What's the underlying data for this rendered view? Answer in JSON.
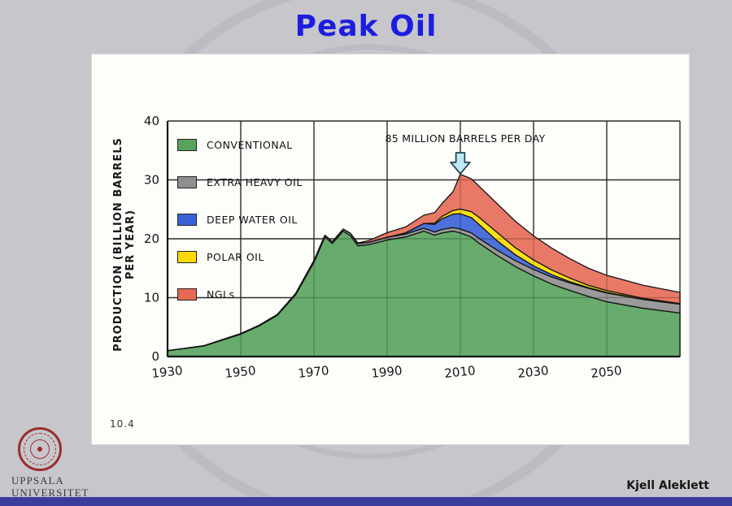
{
  "slide": {
    "title": "Peak Oil",
    "author": "Kjell Aleklett",
    "figure_number": "10.4",
    "logo_line1": "UPPSALA",
    "logo_line2": "UNIVERSITET",
    "colors": {
      "title_blue": "#1d1de0",
      "footer_bar": "#3c3c9c",
      "logo_red": "#9c2b2b",
      "arrow_fill": "#bfe9f5"
    }
  },
  "chart_data": {
    "type": "area",
    "stacked": true,
    "ylabel": "PRODUCTION (BILLION BARRELS PER YEAR)",
    "annotation": "85 MILLION BARRELS PER DAY",
    "annotation_year": 2010,
    "grid": true,
    "legend_position": "upper-left-inside",
    "xlim": [
      1930,
      2070
    ],
    "ylim": [
      0,
      40
    ],
    "xticks": [
      1930,
      1950,
      1970,
      1990,
      2010,
      2030,
      2050
    ],
    "yticks": [
      0,
      10,
      20,
      30,
      40
    ],
    "x": [
      1930,
      1940,
      1950,
      1955,
      1960,
      1965,
      1970,
      1973,
      1975,
      1978,
      1980,
      1982,
      1985,
      1990,
      1995,
      2000,
      2003,
      2005,
      2008,
      2010,
      2013,
      2015,
      2020,
      2025,
      2030,
      2035,
      2040,
      2045,
      2050,
      2060,
      2070
    ],
    "series": [
      {
        "label": "CONVENTIONAL",
        "color": "#57a35c",
        "values": [
          1.0,
          1.8,
          3.8,
          5.2,
          7.0,
          10.5,
          16.0,
          20.3,
          19.2,
          21.3,
          20.5,
          18.8,
          19.0,
          19.8,
          20.3,
          21.3,
          20.6,
          21.0,
          21.3,
          21.0,
          20.3,
          19.3,
          17.2,
          15.3,
          13.7,
          12.3,
          11.2,
          10.2,
          9.3,
          8.2,
          7.4
        ]
      },
      {
        "label": "EXTRA HEAVY OIL",
        "color": "#8f8f8f",
        "values": [
          0,
          0.05,
          0.1,
          0.1,
          0.15,
          0.2,
          0.3,
          0.3,
          0.3,
          0.35,
          0.4,
          0.4,
          0.4,
          0.45,
          0.5,
          0.5,
          0.55,
          0.6,
          0.6,
          0.65,
          0.7,
          0.8,
          0.9,
          1.0,
          1.1,
          1.2,
          1.3,
          1.4,
          1.5,
          1.5,
          1.5
        ]
      },
      {
        "label": "DEEP WATER OIL",
        "color": "#3a62d8",
        "values": [
          0,
          0,
          0,
          0,
          0,
          0,
          0,
          0,
          0,
          0,
          0,
          0,
          0,
          0,
          0.2,
          0.8,
          1.3,
          1.8,
          2.3,
          2.6,
          2.6,
          2.4,
          1.6,
          1.0,
          0.6,
          0.4,
          0.2,
          0.1,
          0.1,
          0,
          0
        ]
      },
      {
        "label": "POLAR OIL",
        "color": "#ffd900",
        "values": [
          0,
          0,
          0,
          0,
          0,
          0,
          0,
          0,
          0,
          0,
          0,
          0,
          0,
          0,
          0,
          0,
          0.2,
          0.4,
          0.6,
          0.8,
          1.0,
          1.2,
          1.4,
          1.2,
          1.0,
          0.8,
          0.6,
          0.4,
          0.3,
          0.2,
          0.1
        ]
      },
      {
        "label": "NGLs",
        "color": "#e56a55",
        "values": [
          0,
          0,
          0,
          0,
          0,
          0,
          0,
          0,
          0,
          0,
          0,
          0.1,
          0.3,
          0.8,
          1.0,
          1.4,
          1.8,
          2.2,
          3.2,
          5.9,
          5.6,
          5.3,
          4.9,
          4.5,
          4.1,
          3.7,
          3.3,
          2.9,
          2.6,
          2.2,
          1.9
        ]
      }
    ]
  }
}
